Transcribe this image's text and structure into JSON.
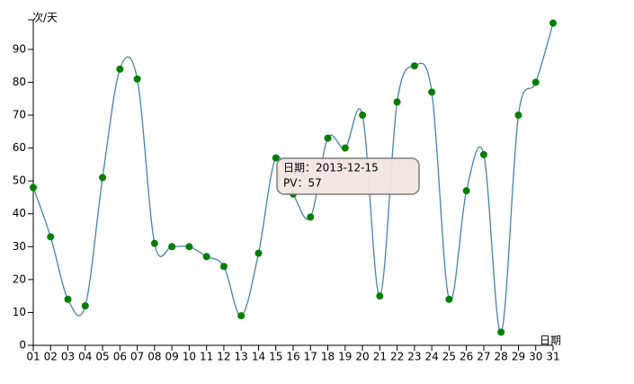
{
  "chart_data": {
    "type": "line",
    "x_label": "日期",
    "y_label": "次/天",
    "categories": [
      "01",
      "02",
      "03",
      "04",
      "05",
      "06",
      "07",
      "08",
      "09",
      "10",
      "11",
      "12",
      "13",
      "14",
      "15",
      "16",
      "17",
      "18",
      "19",
      "20",
      "21",
      "22",
      "23",
      "24",
      "25",
      "26",
      "27",
      "28",
      "29",
      "30",
      "31"
    ],
    "series": [
      {
        "name": "PV",
        "color": "#4682b4",
        "marker_color": "#008000",
        "values": [
          48,
          33,
          14,
          12,
          51,
          84,
          81,
          31,
          30,
          30,
          27,
          24,
          9,
          28,
          57,
          46,
          39,
          63,
          60,
          70,
          15,
          74,
          85,
          77,
          14,
          47,
          58,
          4,
          70,
          80,
          98
        ]
      }
    ],
    "ylim": [
      0,
      99
    ],
    "yticks": [
      0,
      10,
      20,
      30,
      40,
      50,
      60,
      70,
      80,
      90
    ],
    "tooltip": {
      "line1": "日期：2013-12-15",
      "line2": "PV：57"
    }
  }
}
